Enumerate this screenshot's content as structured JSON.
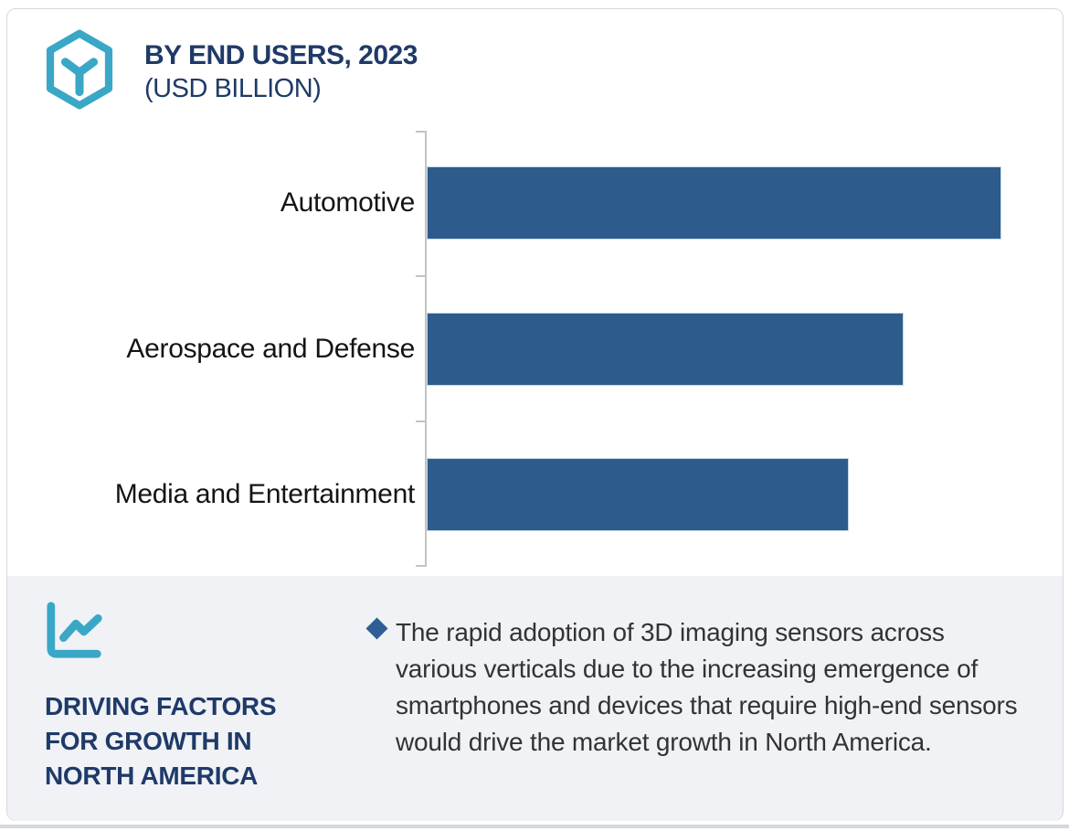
{
  "header": {
    "title_line1": "BY END USERS, 2023",
    "title_line2": "(USD BILLION)",
    "logo_icon": "hexagon-cube-icon",
    "accent_color": "#3aa7c6",
    "title_color": "#1f3a68"
  },
  "chart_data": {
    "type": "bar",
    "orientation": "horizontal",
    "title": "BY END USERS, 2023 (USD BILLION)",
    "categories": [
      "Automotive",
      "Aerospace and Defense",
      "Media and Entertainment"
    ],
    "values_relative_pct": [
      100,
      83,
      73.5
    ],
    "value_labels_shown": false,
    "axis_scale_shown": false,
    "grid": false,
    "legend": false,
    "bar_color": "#2d5c8c",
    "axis_color": "#c3c3c3"
  },
  "panel": {
    "icon": "trend-chart-icon",
    "heading": "DRIVING FACTORS FOR GROWTH IN NORTH AMERICA",
    "bullet_icon": "diamond-bullet",
    "bullet_color": "#2e5f94",
    "bullet_text": "The rapid adoption of 3D imaging sensors across various verticals due to the increasing emergence of smartphones and devices that require high-end sensors would drive the market growth in North America.",
    "background_color": "#f0f2f6"
  }
}
